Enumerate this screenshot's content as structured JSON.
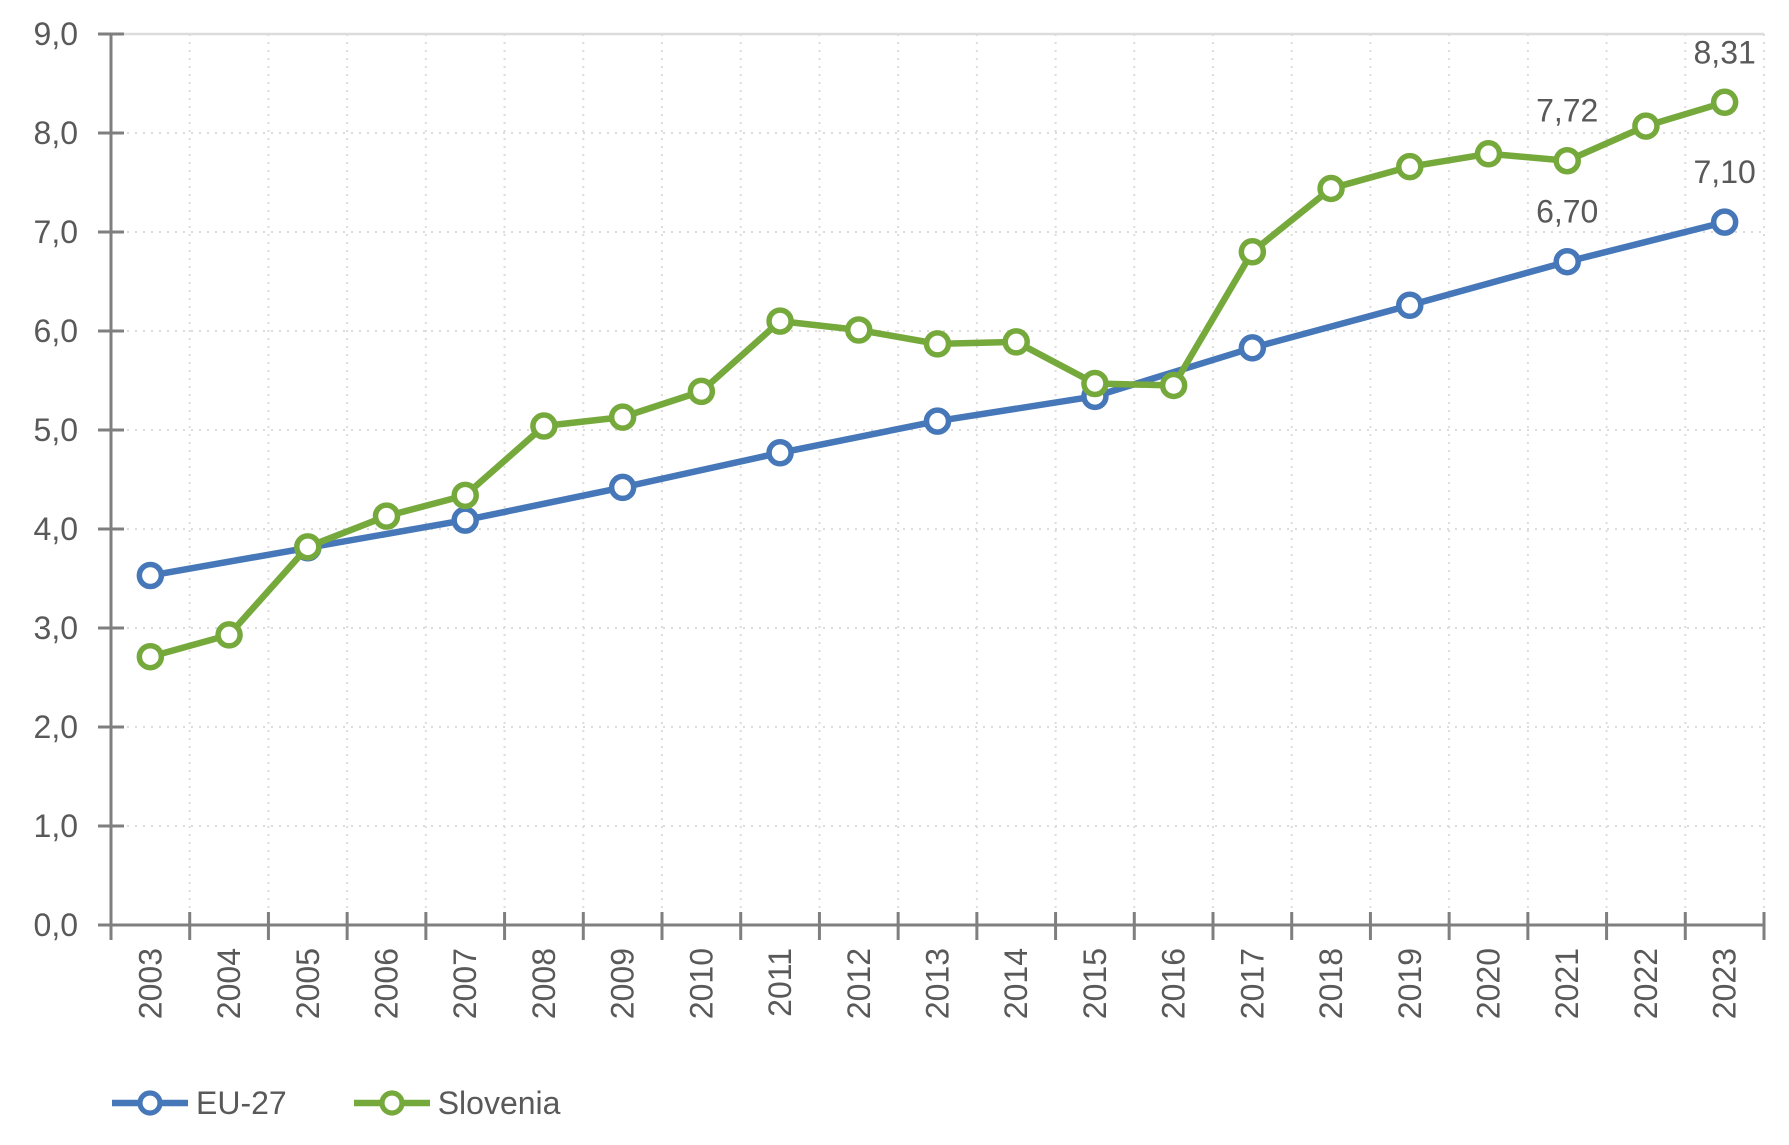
{
  "chart_data": {
    "type": "line",
    "title": "",
    "xlabel": "",
    "ylabel": "",
    "categories": [
      "2003",
      "2004",
      "2005",
      "2006",
      "2007",
      "2008",
      "2009",
      "2010",
      "2011",
      "2012",
      "2013",
      "2014",
      "2015",
      "2016",
      "2017",
      "2018",
      "2019",
      "2020",
      "2021",
      "2022",
      "2023"
    ],
    "y_axis": {
      "min": 0,
      "max": 9,
      "step": 1,
      "tick_labels": [
        "0,0",
        "1,0",
        "2,0",
        "3,0",
        "4,0",
        "5,0",
        "6,0",
        "7,0",
        "8,0",
        "9,0"
      ]
    },
    "number_format": "comma-decimal",
    "grid": {
      "horizontal": "dotted",
      "vertical": "dotted",
      "color": "#dcdcdc",
      "top_border": "solid"
    },
    "legend": {
      "position": "bottom-left",
      "entries": [
        "EU-27",
        "Slovenia"
      ]
    },
    "series": [
      {
        "name": "EU-27",
        "color": "#4677b8",
        "marker": "circle",
        "x": [
          2003,
          2005,
          2007,
          2009,
          2011,
          2013,
          2015,
          2017,
          2019,
          2021,
          2023
        ],
        "values": [
          3.53,
          3.81,
          4.09,
          4.42,
          4.77,
          5.09,
          5.34,
          5.83,
          6.26,
          6.7,
          7.1
        ],
        "data_labels": [
          {
            "x": 2021,
            "text": "6,70"
          },
          {
            "x": 2023,
            "text": "7,10"
          }
        ]
      },
      {
        "name": "Slovenia",
        "color": "#76a93c",
        "marker": "circle",
        "x": [
          2003,
          2004,
          2005,
          2006,
          2007,
          2008,
          2009,
          2010,
          2011,
          2012,
          2013,
          2014,
          2015,
          2016,
          2017,
          2018,
          2019,
          2020,
          2021,
          2022,
          2023
        ],
        "values": [
          2.71,
          2.93,
          3.82,
          4.13,
          4.34,
          5.04,
          5.13,
          5.39,
          6.1,
          6.01,
          5.87,
          5.89,
          5.47,
          5.45,
          6.8,
          7.44,
          7.66,
          7.79,
          7.72,
          8.07,
          8.31
        ],
        "data_labels": [
          {
            "x": 2021,
            "text": "7,72"
          },
          {
            "x": 2023,
            "text": "8,31"
          }
        ]
      }
    ],
    "colors": {
      "axis_line": "#7f7f7f",
      "tick_text": "#595959",
      "gridline": "#dcdcdc",
      "background": "#ffffff"
    }
  }
}
